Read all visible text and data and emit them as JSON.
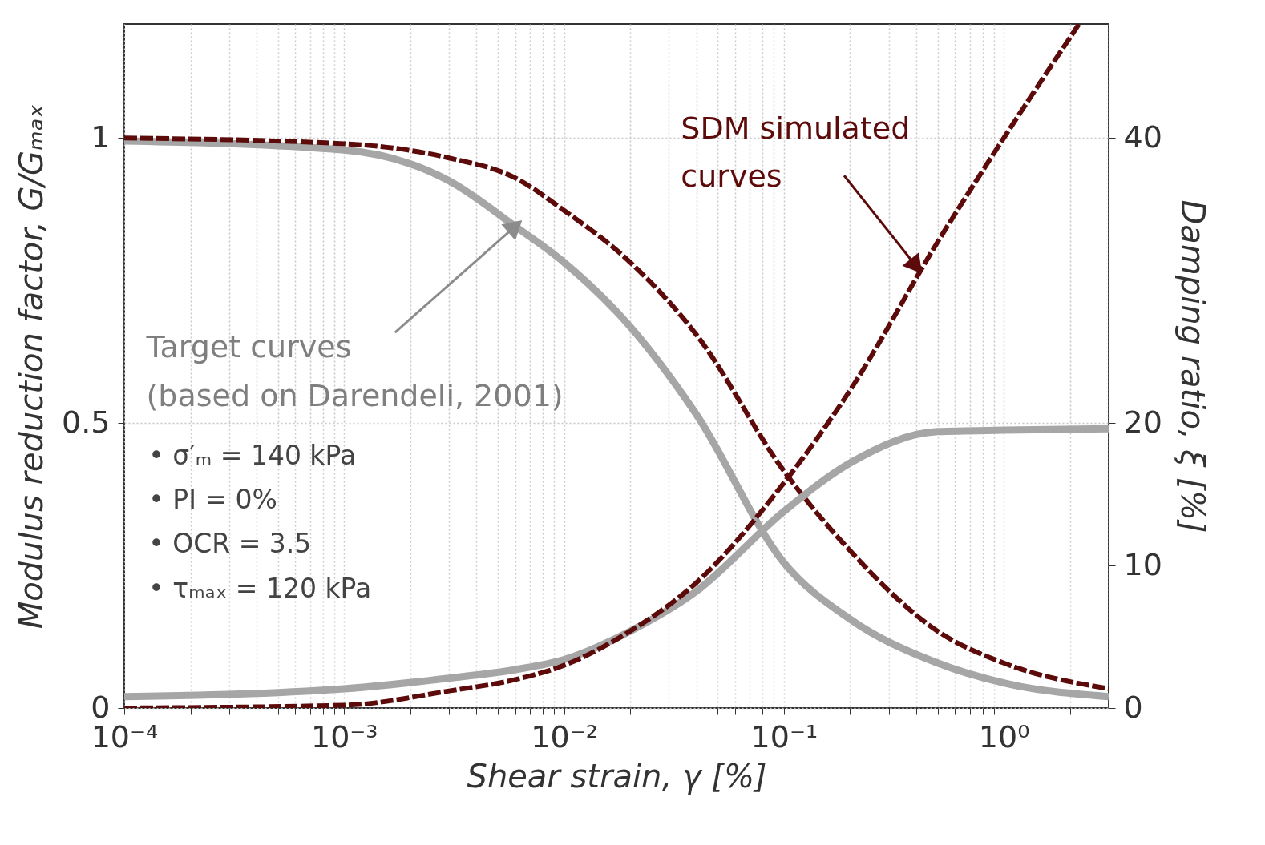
{
  "chart_data": {
    "type": "line",
    "xlabel": "Shear strain, γ [%]",
    "ylabel": "Modulus reduction factor, G/Gₘₐₓ",
    "y2label": "Damping ratio, ξ [%]",
    "log": "x",
    "grid": true,
    "xlim": [
      0.0001,
      3
    ],
    "ylim": [
      0,
      1.2
    ],
    "y2lim": [
      0,
      48
    ],
    "xticks": [
      {
        "value": 0.0001,
        "label": "10⁻⁴"
      },
      {
        "value": 0.0002,
        "label": null
      },
      {
        "value": 0.0003,
        "label": null
      },
      {
        "value": 0.0004,
        "label": null
      },
      {
        "value": 0.0005,
        "label": null
      },
      {
        "value": 0.0006,
        "label": null
      },
      {
        "value": 0.0007,
        "label": null
      },
      {
        "value": 0.0008,
        "label": null
      },
      {
        "value": 0.0009,
        "label": null
      },
      {
        "value": 0.001,
        "label": "10⁻³"
      },
      {
        "value": 0.002,
        "label": null
      },
      {
        "value": 0.003,
        "label": null
      },
      {
        "value": 0.004,
        "label": null
      },
      {
        "value": 0.005,
        "label": null
      },
      {
        "value": 0.006,
        "label": null
      },
      {
        "value": 0.007,
        "label": null
      },
      {
        "value": 0.008,
        "label": null
      },
      {
        "value": 0.009,
        "label": null
      },
      {
        "value": 0.01,
        "label": "10⁻²"
      },
      {
        "value": 0.02,
        "label": null
      },
      {
        "value": 0.03,
        "label": null
      },
      {
        "value": 0.04,
        "label": null
      },
      {
        "value": 0.05,
        "label": null
      },
      {
        "value": 0.06,
        "label": null
      },
      {
        "value": 0.07,
        "label": null
      },
      {
        "value": 0.08,
        "label": null
      },
      {
        "value": 0.09,
        "label": null
      },
      {
        "value": 0.1,
        "label": "10⁻¹"
      },
      {
        "value": 0.2,
        "label": null
      },
      {
        "value": 0.3,
        "label": null
      },
      {
        "value": 0.4,
        "label": null
      },
      {
        "value": 0.5,
        "label": null
      },
      {
        "value": 0.6,
        "label": null
      },
      {
        "value": 0.7,
        "label": null
      },
      {
        "value": 0.8,
        "label": null
      },
      {
        "value": 0.9,
        "label": null
      },
      {
        "value": 1,
        "label": "10⁰"
      },
      {
        "value": 2,
        "label": null
      },
      {
        "value": 3,
        "label": null
      }
    ],
    "yticks": [
      0,
      0.5,
      1
    ],
    "y2ticks": [
      0,
      10,
      20,
      40
    ],
    "x": [
      0.0001,
      0.001,
      0.003,
      0.006,
      0.01,
      0.02,
      0.04,
      0.1,
      0.2,
      0.5,
      1,
      3
    ],
    "series": [
      {
        "color": "#a6a6a6",
        "line_style": "solid",
        "values": [
          0.995,
          0.979,
          0.925,
          0.845,
          0.782,
          0.669,
          0.515,
          0.255,
          0.156,
          0.079,
          0.044,
          0.02
        ]
      },
      {
        "color": "#a6a6a6",
        "line_style": "solid",
        "axis": "y2",
        "values": [
          0.8,
          1.35,
          2.1,
          2.7,
          3.4,
          5.4,
          8.2,
          13.8,
          17.2,
          19.4,
          19.5,
          19.6
        ]
      },
      {
        "color": "#5c0a0a",
        "line_style": "dashed",
        "values": [
          1.0,
          0.99,
          0.965,
          0.93,
          0.873,
          0.782,
          0.655,
          0.416,
          0.276,
          0.135,
          0.079,
          0.034
        ]
      },
      {
        "color": "#5c0a0a",
        "line_style": "dashed",
        "axis": "y2",
        "x": [
          0.0001,
          0.001,
          0.003,
          0.006,
          0.01,
          0.02,
          0.04,
          0.1,
          0.2,
          0.5,
          1,
          2.2
        ],
        "values": [
          0,
          0.2,
          1.2,
          2.0,
          3.0,
          5.4,
          8.8,
          15.8,
          22.3,
          32.7,
          40,
          48
        ]
      }
    ],
    "annotations": [
      {
        "text": "Target curves\n(based on Darendeli, 2001)",
        "x": 0.006,
        "y": 0.845
      },
      "• σ′ₘ = 140 kPa",
      "• PI = 0%",
      "• OCR = 3.5",
      "• τₘₐₓ = 120 kPa",
      {
        "text": "SDM simulated\ncurves",
        "x": 0.4,
        "y": 0.775
      }
    ]
  }
}
